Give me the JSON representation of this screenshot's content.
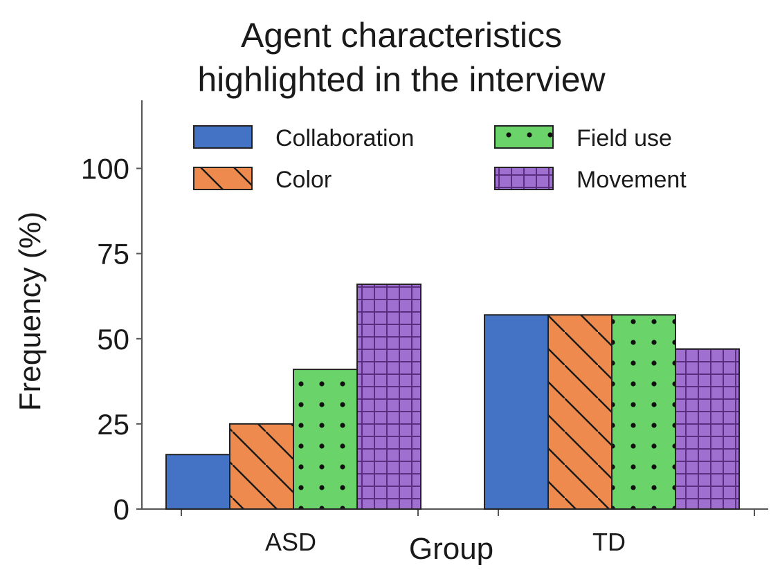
{
  "chart_data": {
    "type": "bar",
    "title_lines": [
      "Agent characteristics",
      "highlighted in the interview"
    ],
    "xlabel": "Group",
    "ylabel": "Frequency (%)",
    "ylim": [
      0,
      120
    ],
    "yticks": [
      0,
      25,
      50,
      75,
      100
    ],
    "categories": [
      "ASD",
      "TD"
    ],
    "legend_position": "top",
    "grid": false,
    "series": [
      {
        "name": "Collaboration",
        "color": "#4472c4",
        "pattern": "solid",
        "values": [
          16,
          57
        ]
      },
      {
        "name": "Color",
        "color": "#ee8a4e",
        "pattern": "diagonal-hatch",
        "values": [
          25,
          57
        ]
      },
      {
        "name": "Field use",
        "color": "#6ad46a",
        "pattern": "dots",
        "values": [
          41,
          57
        ]
      },
      {
        "name": "Movement",
        "color": "#a070d0",
        "pattern": "grid",
        "values": [
          66,
          47
        ]
      }
    ]
  }
}
